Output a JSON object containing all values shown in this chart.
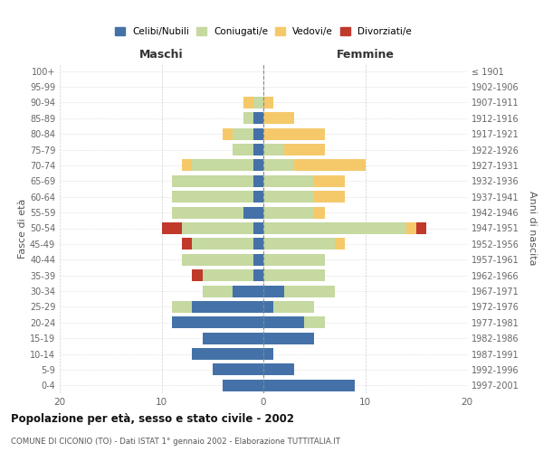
{
  "age_groups": [
    "0-4",
    "5-9",
    "10-14",
    "15-19",
    "20-24",
    "25-29",
    "30-34",
    "35-39",
    "40-44",
    "45-49",
    "50-54",
    "55-59",
    "60-64",
    "65-69",
    "70-74",
    "75-79",
    "80-84",
    "85-89",
    "90-94",
    "95-99",
    "100+"
  ],
  "birth_years": [
    "1997-2001",
    "1992-1996",
    "1987-1991",
    "1982-1986",
    "1977-1981",
    "1972-1976",
    "1967-1971",
    "1962-1966",
    "1957-1961",
    "1952-1956",
    "1947-1951",
    "1942-1946",
    "1937-1941",
    "1932-1936",
    "1927-1931",
    "1922-1926",
    "1917-1921",
    "1912-1916",
    "1907-1911",
    "1902-1906",
    "≤ 1901"
  ],
  "maschi": {
    "celibi": [
      4,
      5,
      7,
      6,
      9,
      7,
      3,
      1,
      1,
      1,
      1,
      2,
      1,
      1,
      1,
      1,
      1,
      1,
      0,
      0,
      0
    ],
    "coniugati": [
      0,
      0,
      0,
      0,
      0,
      2,
      3,
      5,
      7,
      6,
      7,
      7,
      8,
      8,
      6,
      2,
      2,
      1,
      1,
      0,
      0
    ],
    "vedovi": [
      0,
      0,
      0,
      0,
      0,
      0,
      0,
      0,
      0,
      0,
      0,
      0,
      0,
      0,
      1,
      0,
      1,
      0,
      1,
      0,
      0
    ],
    "divorziati": [
      0,
      0,
      0,
      0,
      0,
      0,
      0,
      1,
      0,
      1,
      2,
      0,
      0,
      0,
      0,
      0,
      0,
      0,
      0,
      0,
      0
    ]
  },
  "femmine": {
    "nubili": [
      9,
      3,
      1,
      5,
      4,
      1,
      2,
      0,
      0,
      0,
      0,
      0,
      0,
      0,
      0,
      0,
      0,
      0,
      0,
      0,
      0
    ],
    "coniugate": [
      0,
      0,
      0,
      0,
      2,
      4,
      5,
      6,
      6,
      7,
      14,
      5,
      5,
      5,
      3,
      2,
      0,
      0,
      0,
      0,
      0
    ],
    "vedove": [
      0,
      0,
      0,
      0,
      0,
      0,
      0,
      0,
      0,
      1,
      1,
      1,
      3,
      3,
      7,
      4,
      6,
      3,
      1,
      0,
      0
    ],
    "divorziate": [
      0,
      0,
      0,
      0,
      0,
      0,
      0,
      0,
      0,
      0,
      1,
      0,
      0,
      0,
      0,
      0,
      0,
      0,
      0,
      0,
      0
    ]
  },
  "colors": {
    "celibi_nubili": "#4472a8",
    "coniugati": "#c5d9a0",
    "vedovi": "#f5c96a",
    "divorziati": "#c0392b"
  },
  "title": "Popolazione per età, sesso e stato civile - 2002",
  "subtitle": "COMUNE DI CICONIO (TO) - Dati ISTAT 1° gennaio 2002 - Elaborazione TUTTITALIA.IT",
  "xlabel_left": "Maschi",
  "xlabel_right": "Femmine",
  "ylabel_left": "Fasce di età",
  "ylabel_right": "Anni di nascita",
  "xlim": 20,
  "background_color": "#ffffff",
  "grid_color": "#cccccc"
}
